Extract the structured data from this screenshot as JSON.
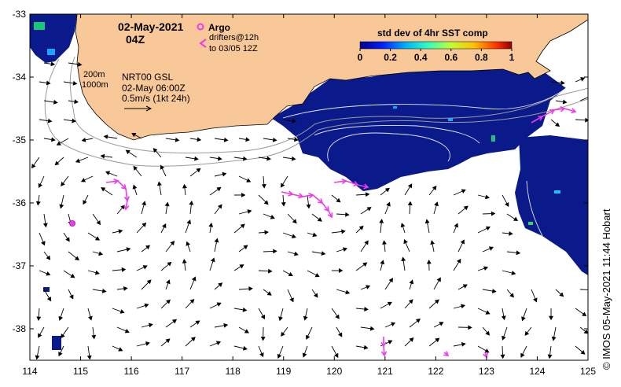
{
  "title": {
    "date": "02-May-2021",
    "hour": "04Z"
  },
  "legend": {
    "argo": "Argo",
    "drifters_line1": "drifters@12h",
    "drifters_line2": "to 03/05 12Z",
    "argo_color": "#e83ee8",
    "drifter_color": "#e83ee8"
  },
  "contours": {
    "c200": "200m",
    "c1000": "1000m"
  },
  "current_info": {
    "line1": "NRT00 GSL",
    "line2": "02-May 06:00Z",
    "line3": "0.5m/s (1kt 24h)"
  },
  "colorbar": {
    "title": "std dev of 4hr SST comp",
    "ticks": [
      "0",
      "0.2",
      "0.4",
      "0.6",
      "0.8",
      "1"
    ],
    "range": [
      0,
      1
    ]
  },
  "axes": {
    "x_ticks": [
      "114",
      "115",
      "116",
      "117",
      "118",
      "119",
      "120",
      "121",
      "122",
      "123",
      "124",
      "125"
    ],
    "y_ticks": [
      "-33",
      "-34",
      "-35",
      "-36",
      "-37",
      "-38"
    ],
    "lon_range": [
      114,
      125
    ],
    "lat_range": [
      -38.5,
      -33
    ]
  },
  "credit": "© IMOS 05-May-2021 11:44 Hobart",
  "colors": {
    "land": "#f8c898",
    "sst_background": "#0a1a8a",
    "coast": "#9a9a9a"
  }
}
